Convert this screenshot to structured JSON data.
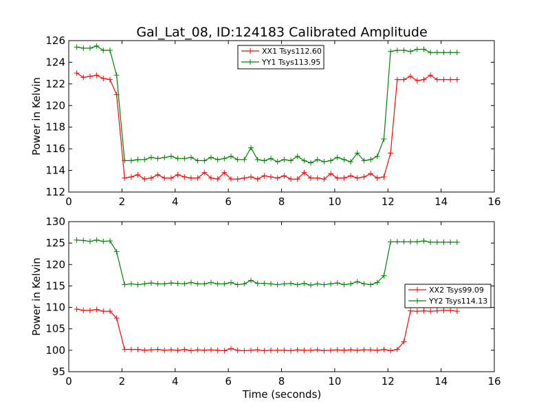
{
  "chart_data": {
    "title": "Gal_Lat_08, ID:124183 Calibrated Amplitude",
    "xlabel": "Time (seconds)",
    "panels": [
      {
        "type": "line",
        "ylabel": "Power in Kelvin",
        "xlim": [
          0,
          16
        ],
        "ylim": [
          112,
          126
        ],
        "xticks": [
          0,
          2,
          4,
          6,
          8,
          10,
          12,
          14,
          16
        ],
        "yticks": [
          112,
          114,
          116,
          118,
          120,
          122,
          124,
          126
        ],
        "legend_position": "top-center",
        "x": [
          0.3,
          0.55,
          0.8,
          1.05,
          1.3,
          1.55,
          1.8,
          2.1,
          2.35,
          2.6,
          2.85,
          3.1,
          3.35,
          3.6,
          3.85,
          4.1,
          4.35,
          4.6,
          4.85,
          5.1,
          5.35,
          5.6,
          5.85,
          6.1,
          6.35,
          6.6,
          6.85,
          7.1,
          7.35,
          7.6,
          7.85,
          8.1,
          8.35,
          8.6,
          8.85,
          9.1,
          9.35,
          9.6,
          9.85,
          10.1,
          10.35,
          10.6,
          10.85,
          11.1,
          11.35,
          11.6,
          11.85,
          12.1,
          12.35,
          12.6,
          12.85,
          13.1,
          13.35,
          13.6,
          13.85,
          14.1,
          14.35,
          14.6
        ],
        "series": [
          {
            "name": "XX1 Tsys112.60",
            "color": "#ff0000",
            "values": [
              123.0,
              122.6,
              122.7,
              122.8,
              122.5,
              122.4,
              121.0,
              113.3,
              113.4,
              113.6,
              113.2,
              113.3,
              113.6,
              113.3,
              113.3,
              113.6,
              113.4,
              113.3,
              113.3,
              113.8,
              113.3,
              113.2,
              113.8,
              113.2,
              113.2,
              113.3,
              113.4,
              113.2,
              113.5,
              113.4,
              113.3,
              113.5,
              113.2,
              113.2,
              113.8,
              113.3,
              113.3,
              113.2,
              113.7,
              113.3,
              113.3,
              113.5,
              113.3,
              113.4,
              113.7,
              113.3,
              113.4,
              115.6,
              122.4,
              122.4,
              122.7,
              122.3,
              122.4,
              122.8,
              122.4,
              122.4,
              122.4,
              122.4
            ],
            "note": ""
          },
          {
            "name": "YY1 Tsys113.95",
            "color": "#008000",
            "values": [
              125.4,
              125.3,
              125.3,
              125.5,
              125.1,
              125.1,
              122.8,
              114.9,
              114.9,
              115.0,
              115.0,
              115.2,
              115.1,
              115.2,
              115.3,
              115.1,
              115.1,
              115.2,
              114.9,
              114.9,
              115.2,
              115.0,
              115.1,
              115.3,
              115.0,
              115.0,
              116.1,
              115.0,
              114.9,
              115.1,
              114.8,
              115.0,
              114.9,
              115.3,
              114.9,
              114.7,
              115.0,
              114.8,
              114.9,
              115.2,
              115.0,
              114.8,
              115.6,
              114.9,
              115.0,
              115.3,
              116.9,
              125.0,
              125.1,
              125.1,
              125.0,
              125.2,
              125.2,
              124.9,
              124.9,
              124.9,
              124.9,
              124.9
            ],
            "note": ""
          }
        ]
      },
      {
        "type": "line",
        "ylabel": "Power in Kelvin",
        "xlim": [
          0,
          16
        ],
        "ylim": [
          95,
          130
        ],
        "xticks": [
          0,
          2,
          4,
          6,
          8,
          10,
          12,
          14,
          16
        ],
        "yticks": [
          95,
          100,
          105,
          110,
          115,
          120,
          125,
          130
        ],
        "legend_position": "center-right",
        "x": [
          0.3,
          0.55,
          0.8,
          1.05,
          1.3,
          1.55,
          1.8,
          2.1,
          2.35,
          2.6,
          2.85,
          3.1,
          3.35,
          3.6,
          3.85,
          4.1,
          4.35,
          4.6,
          4.85,
          5.1,
          5.35,
          5.6,
          5.85,
          6.1,
          6.35,
          6.6,
          6.85,
          7.1,
          7.35,
          7.6,
          7.85,
          8.1,
          8.35,
          8.6,
          8.85,
          9.1,
          9.35,
          9.6,
          9.85,
          10.1,
          10.35,
          10.6,
          10.85,
          11.1,
          11.35,
          11.6,
          11.85,
          12.1,
          12.35,
          12.6,
          12.85,
          13.1,
          13.35,
          13.6,
          13.85,
          14.1,
          14.35,
          14.6
        ],
        "series": [
          {
            "name": "XX2 Tsys99.09",
            "color": "#ff0000",
            "values": [
              109.6,
              109.3,
              109.3,
              109.5,
              109.1,
              109.1,
              107.5,
              100.2,
              100.2,
              100.2,
              100.0,
              100.1,
              100.2,
              100.0,
              100.1,
              100.0,
              100.2,
              99.9,
              100.1,
              100.0,
              100.1,
              100.0,
              99.9,
              100.4,
              100.0,
              99.9,
              100.0,
              100.1,
              99.9,
              100.0,
              100.0,
              100.0,
              99.9,
              100.1,
              100.0,
              100.0,
              100.1,
              99.9,
              100.0,
              100.1,
              100.0,
              100.1,
              100.0,
              100.1,
              100.1,
              100.0,
              100.2,
              99.9,
              100.2,
              102.0,
              109.2,
              109.1,
              109.2,
              109.1,
              109.2,
              109.3,
              109.3,
              109.1
            ],
            "note": ""
          },
          {
            "name": "YY2 Tsys114.13",
            "color": "#008000",
            "values": [
              125.7,
              125.6,
              125.4,
              125.7,
              125.4,
              125.5,
              123.0,
              115.3,
              115.5,
              115.3,
              115.5,
              115.7,
              115.5,
              115.5,
              115.7,
              115.6,
              115.5,
              115.8,
              115.5,
              115.5,
              115.8,
              115.5,
              115.5,
              115.8,
              115.3,
              115.5,
              116.3,
              115.6,
              115.6,
              115.5,
              115.3,
              115.5,
              115.6,
              115.3,
              115.6,
              115.2,
              115.5,
              115.3,
              115.5,
              115.7,
              115.3,
              115.5,
              116.0,
              115.5,
              115.3,
              115.8,
              117.4,
              125.3,
              125.3,
              125.3,
              125.3,
              125.3,
              125.5,
              125.2,
              125.2,
              125.2,
              125.2,
              125.2
            ],
            "note": ""
          }
        ]
      }
    ]
  }
}
